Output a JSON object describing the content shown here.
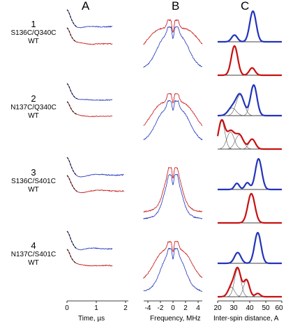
{
  "panel_letters": [
    "A",
    "B",
    "C"
  ],
  "rows": [
    {
      "number": "1",
      "mutant": "S136C/Q340C",
      "wt": "WT"
    },
    {
      "number": "2",
      "mutant": "N137C/Q340C",
      "wt": "WT"
    },
    {
      "number": "3",
      "mutant": "S136C/S401C",
      "wt": "WT"
    },
    {
      "number": "4",
      "mutant": "N137C/S401C",
      "wt": "WT"
    }
  ],
  "colors": {
    "mutant": "#2233bb",
    "wt": "#c81010",
    "fit": "#000000",
    "component": "#555555"
  },
  "chart_data": [
    {
      "type": "line",
      "panel": "A",
      "xlabel": "Time, µs",
      "xlim": [
        0,
        2
      ],
      "xticks": [
        "0",
        "1",
        "2"
      ],
      "note": "Time-domain DEER traces with fits (dashed black) for mutant (blue) and WT (red)",
      "rows": [
        {
          "mutant": {
            "tmax": 1.55,
            "depth": 0.78,
            "period": 1.1,
            "damp": 0.6,
            "rise": 0.45
          },
          "wt": {
            "tmax": 1.55,
            "depth": 0.78,
            "period": 0.7,
            "damp": 0.4,
            "rise": 0.1
          }
        },
        {
          "mutant": {
            "tmax": 1.55,
            "depth": 0.7,
            "period": 0.9,
            "damp": 0.35,
            "rise": 0.05
          },
          "wt": {
            "tmax": 1.55,
            "depth": 0.7,
            "period": 0.7,
            "damp": 0.25,
            "rise": 0.02
          }
        },
        {
          "mutant": {
            "tmax": 1.95,
            "depth": 0.8,
            "period": 1.4,
            "damp": 0.9,
            "rise": 0.35
          },
          "wt": {
            "tmax": 1.95,
            "depth": 0.78,
            "period": 1.5,
            "damp": 1.0,
            "rise": 0.25
          }
        },
        {
          "mutant": {
            "tmax": 1.55,
            "depth": 0.78,
            "period": 1.2,
            "damp": 0.7,
            "rise": 0.3
          },
          "wt": {
            "tmax": 1.55,
            "depth": 0.78,
            "period": 0.7,
            "damp": 0.3,
            "rise": 0.03
          }
        }
      ]
    },
    {
      "type": "line",
      "panel": "B",
      "xlabel": "Frequency, MHz",
      "xlim": [
        -5,
        5
      ],
      "xticks": [
        "-4",
        "-2",
        "0",
        "2",
        "4"
      ],
      "note": "Frequency-domain Pake patterns for mutant (blue) and WT (red)",
      "rows": [
        {
          "mutant": {
            "peak": 0.55,
            "width": 1.5,
            "dip": 0.3
          },
          "wt": {
            "peak": 0.55,
            "width": 2.6,
            "dip": 0.35
          }
        },
        {
          "mutant": {
            "peak": 0.55,
            "width": 1.6,
            "dip": 0.2
          },
          "wt": {
            "peak": 0.55,
            "width": 2.1,
            "dip": 0.18
          }
        },
        {
          "mutant": {
            "peak": 0.45,
            "width": 0.9,
            "dip": 0.35
          },
          "wt": {
            "peak": 0.45,
            "width": 0.9,
            "dip": 0.35
          }
        },
        {
          "mutant": {
            "peak": 0.45,
            "width": 1.2,
            "dip": 0.35
          },
          "wt": {
            "peak": 0.5,
            "width": 1.8,
            "dip": 0.3
          }
        }
      ]
    },
    {
      "type": "area",
      "panel": "C",
      "xlabel": "Inter-spin distance, A",
      "xlim": [
        20,
        60
      ],
      "xticks": [
        "20",
        "30",
        "40",
        "50",
        "60"
      ],
      "note": "Distance distributions; thin black lines are individual Gaussian components",
      "rows": [
        {
          "mutant": [
            {
              "mu": 30.5,
              "sigma": 1.8,
              "amp": 0.22
            },
            {
              "mu": 42.0,
              "sigma": 2.0,
              "amp": 1.0
            }
          ],
          "wt": [
            {
              "mu": 30.5,
              "sigma": 2.0,
              "amp": 1.0
            },
            {
              "mu": 41.5,
              "sigma": 1.8,
              "amp": 0.25
            }
          ],
          "show_components": false
        },
        {
          "mutant": [
            {
              "mu": 29.0,
              "sigma": 2.5,
              "amp": 0.25
            },
            {
              "mu": 34.0,
              "sigma": 2.5,
              "amp": 0.68
            },
            {
              "mu": 42.5,
              "sigma": 2.0,
              "amp": 1.0
            }
          ],
          "wt": [
            {
              "mu": 22.5,
              "sigma": 2.0,
              "amp": 1.0
            },
            {
              "mu": 28.0,
              "sigma": 2.3,
              "amp": 0.6
            },
            {
              "mu": 33.5,
              "sigma": 2.5,
              "amp": 0.5
            },
            {
              "mu": 41.5,
              "sigma": 2.0,
              "amp": 0.35
            }
          ],
          "show_components": true
        },
        {
          "mutant": [
            {
              "mu": 32.0,
              "sigma": 1.5,
              "amp": 0.2
            },
            {
              "mu": 38.5,
              "sigma": 1.5,
              "amp": 0.22
            },
            {
              "mu": 45.5,
              "sigma": 2.0,
              "amp": 1.0
            }
          ],
          "wt": [
            {
              "mu": 41.0,
              "sigma": 2.2,
              "amp": 1.0
            }
          ],
          "show_components": false
        },
        {
          "mutant": [
            {
              "mu": 32.5,
              "sigma": 2.0,
              "amp": 0.35
            },
            {
              "mu": 45.0,
              "sigma": 2.0,
              "amp": 1.0
            }
          ],
          "wt": [
            {
              "mu": 28.5,
              "sigma": 2.0,
              "amp": 0.35
            },
            {
              "mu": 32.5,
              "sigma": 2.0,
              "amp": 1.0
            },
            {
              "mu": 38.0,
              "sigma": 1.8,
              "amp": 0.6
            },
            {
              "mu": 45.0,
              "sigma": 1.5,
              "amp": 0.12
            }
          ],
          "show_components": true
        }
      ]
    }
  ]
}
